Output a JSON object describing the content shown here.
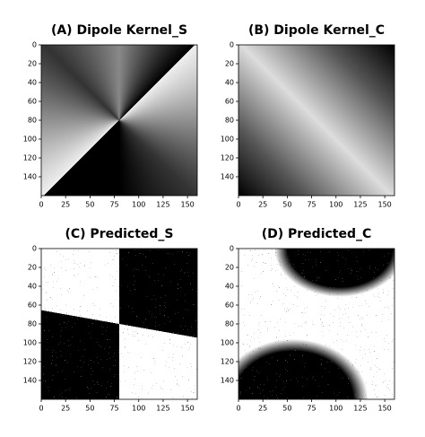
{
  "chart_data": [
    {
      "type": "image",
      "title": "(A) Dipole Kernel_S",
      "xlim": [
        0,
        160
      ],
      "ylim": [
        160,
        0
      ],
      "xticks": [
        0,
        25,
        50,
        75,
        100,
        125,
        150
      ],
      "yticks": [
        0,
        20,
        40,
        60,
        80,
        100,
        120,
        140
      ]
    },
    {
      "type": "image",
      "title": "(B) Dipole Kernel_C",
      "xlim": [
        0,
        160
      ],
      "ylim": [
        160,
        0
      ],
      "xticks": [
        0,
        25,
        50,
        75,
        100,
        125,
        150
      ],
      "yticks": [
        0,
        20,
        40,
        60,
        80,
        100,
        120,
        140
      ]
    },
    {
      "type": "image",
      "title": "(C) Predicted_S",
      "xlim": [
        0,
        160
      ],
      "ylim": [
        160,
        0
      ],
      "xticks": [
        0,
        25,
        50,
        75,
        100,
        125,
        150
      ],
      "yticks": [
        0,
        20,
        40,
        60,
        80,
        100,
        120,
        140
      ]
    },
    {
      "type": "image",
      "title": "(D) Predicted_C",
      "xlim": [
        0,
        160
      ],
      "ylim": [
        160,
        0
      ],
      "xticks": [
        0,
        25,
        50,
        75,
        100,
        125,
        150
      ],
      "yticks": [
        0,
        20,
        40,
        60,
        80,
        100,
        120,
        140
      ]
    }
  ]
}
